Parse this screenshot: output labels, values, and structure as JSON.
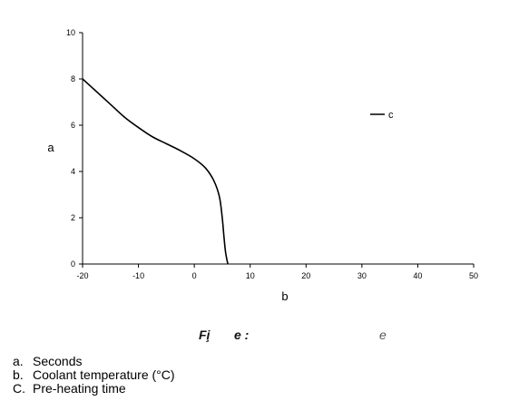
{
  "chart_data": {
    "type": "line",
    "x": [
      -20,
      -17.5,
      -15,
      -12.5,
      -10,
      -7.5,
      -5,
      -2.5,
      0,
      2,
      3.5,
      4.5,
      5,
      5.3,
      5.6,
      6
    ],
    "series": [
      {
        "values": [
          8.0,
          7.45,
          6.9,
          6.35,
          5.9,
          5.5,
          5.2,
          4.9,
          4.55,
          4.15,
          3.6,
          2.9,
          2.0,
          1.2,
          0.5,
          0
        ]
      }
    ],
    "xlabel": "b",
    "ylabel": "a",
    "xlim": [
      -20,
      50
    ],
    "ylim": [
      0,
      10
    ],
    "xticks": [
      -20,
      -10,
      0,
      10,
      20,
      30,
      40,
      50
    ],
    "yticks": [
      0,
      2,
      4,
      6,
      8,
      10
    ],
    "legend": {
      "label": "c",
      "position": "top-right"
    },
    "grid": false,
    "line_color": "#000000"
  },
  "caption": {
    "frag1": "Fi̧",
    "frag2": "e :",
    "frag3": "e"
  },
  "footnotes": [
    {
      "key": "a.",
      "text": "Seconds"
    },
    {
      "key": "b.",
      "text": "Coolant temperature (°C)"
    },
    {
      "key": "C.",
      "text": "Pre-heating time"
    }
  ]
}
